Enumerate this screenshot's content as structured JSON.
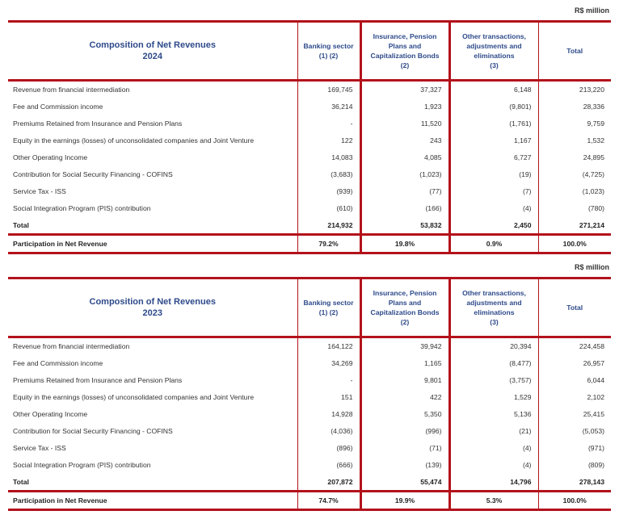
{
  "unit_label": "R$ million",
  "columns": [
    "Banking sector\n(1) (2)",
    "Insurance, Pension Plans and Capitalization Bonds\n(2)",
    "Other transactions, adjustments and eliminations\n(3)",
    "Total"
  ],
  "row_labels": [
    "Revenue from financial intermediation",
    "Fee and Commission income",
    "Premiums Retained from Insurance and Pension Plans",
    "Equity in the earnings (losses) of unconsolidated companies and Joint Venture",
    "Other Operating Income",
    "Contribution for Social Security Financing - COFINS",
    "Service Tax - ISS",
    "Social Integration Program (PIS) contribution",
    "Total"
  ],
  "participation_label": "Participation in Net Revenue",
  "tables": [
    {
      "title": "Composition of Net Revenues",
      "year": "2024",
      "rows": [
        [
          "169,745",
          "37,327",
          "6,148",
          "213,220"
        ],
        [
          "36,214",
          "1,923",
          "(9,801)",
          "28,336"
        ],
        [
          "-",
          "11,520",
          "(1,761)",
          "9,759"
        ],
        [
          "122",
          "243",
          "1,167",
          "1,532"
        ],
        [
          "14,083",
          "4,085",
          "6,727",
          "24,895"
        ],
        [
          "(3,683)",
          "(1,023)",
          "(19)",
          "(4,725)"
        ],
        [
          "(939)",
          "(77)",
          "(7)",
          "(1,023)"
        ],
        [
          "(610)",
          "(166)",
          "(4)",
          "(780)"
        ],
        [
          "214,932",
          "53,832",
          "2,450",
          "271,214"
        ]
      ],
      "participation": [
        "79.2%",
        "19.8%",
        "0.9%",
        "100.0%"
      ]
    },
    {
      "title": "Composition of Net Revenues",
      "year": "2023",
      "rows": [
        [
          "164,122",
          "39,942",
          "20,394",
          "224,458"
        ],
        [
          "34,269",
          "1,165",
          "(8,477)",
          "26,957"
        ],
        [
          "-",
          "9,801",
          "(3,757)",
          "6,044"
        ],
        [
          "151",
          "422",
          "1,529",
          "2,102"
        ],
        [
          "14,928",
          "5,350",
          "5,136",
          "25,415"
        ],
        [
          "(4,036)",
          "(996)",
          "(21)",
          "(5,053)"
        ],
        [
          "(896)",
          "(71)",
          "(4)",
          "(971)"
        ],
        [
          "(666)",
          "(139)",
          "(4)",
          "(809)"
        ],
        [
          "207,872",
          "55,474",
          "14,796",
          "278,143"
        ]
      ],
      "participation": [
        "74.7%",
        "19.9%",
        "5.3%",
        "100.0%"
      ]
    }
  ],
  "colors": {
    "accent_red": "#b3121b",
    "header_blue": "#2e4a8a"
  }
}
